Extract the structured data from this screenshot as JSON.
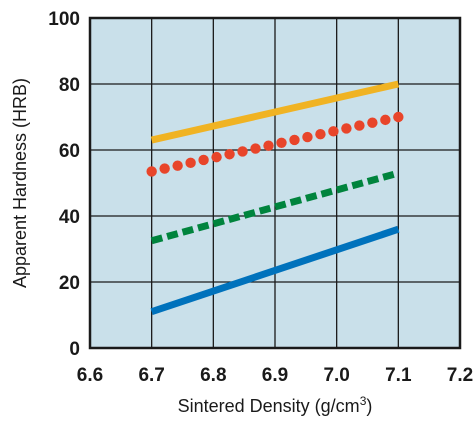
{
  "chart_data": {
    "type": "line",
    "xlabel": "Sintered Density (g/cm",
    "xlabel_superscript": "3",
    "xlabel_suffix": ")",
    "ylabel": "Apparent Hardness (HRB)",
    "xlim": [
      6.6,
      7.2
    ],
    "ylim": [
      0,
      100
    ],
    "x_ticks": [
      "6.6",
      "6.7",
      "6.8",
      "6.9",
      "7.0",
      "7.1",
      "7.2"
    ],
    "y_ticks": [
      "0",
      "20",
      "40",
      "60",
      "80",
      "100"
    ],
    "grid": true,
    "plot_background": "#c9e0ea",
    "series": [
      {
        "style": "solid",
        "color": "#f0b323",
        "x": [
          6.7,
          7.1
        ],
        "values": [
          63,
          80
        ]
      },
      {
        "style": "dotted",
        "color": "#e8452a",
        "x": [
          6.7,
          7.1
        ],
        "values": [
          53.5,
          70
        ]
      },
      {
        "style": "dashed",
        "color": "#00843d",
        "x": [
          6.7,
          7.1
        ],
        "values": [
          32.5,
          53
        ]
      },
      {
        "style": "solid",
        "color": "#0072bc",
        "x": [
          6.7,
          7.1
        ],
        "values": [
          11,
          36
        ]
      }
    ]
  }
}
